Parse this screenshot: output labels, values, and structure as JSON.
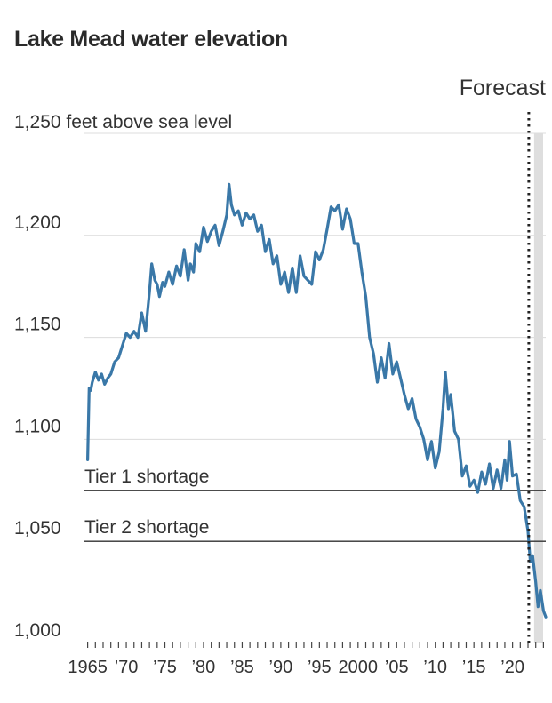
{
  "chart_data": {
    "type": "line",
    "title": "Lake Mead water elevation",
    "y_unit_label": "1,250 feet above sea level",
    "ylim": [
      1000,
      1250
    ],
    "y_ticks": [
      1000,
      1050,
      1100,
      1150,
      1200
    ],
    "y_tick_labels": [
      "1,000",
      "1,050",
      "1,100",
      "1,150",
      "1,200"
    ],
    "xlim": [
      1964.7,
      2024.3
    ],
    "x_ticks": [
      1965,
      1970,
      1975,
      1980,
      1985,
      1990,
      1995,
      2000,
      2005,
      2010,
      2015,
      2020
    ],
    "x_tick_labels": [
      "1965",
      "’70",
      "’75",
      "’80",
      "’85",
      "’90",
      "’95",
      "2000",
      "’05",
      "’10",
      "’15",
      "’20"
    ],
    "grid": true,
    "line_color": "#3a78a8",
    "thresholds": [
      {
        "label": "Tier 1 shortage",
        "value": 1075
      },
      {
        "label": "Tier 2 shortage",
        "value": 1050
      }
    ],
    "forecast": {
      "label": "Forecast",
      "start": 2022.1,
      "end": 2024.3,
      "shade_color": "#dedede"
    },
    "series": [
      {
        "x": [
          1965.0,
          1965.2,
          1965.4,
          1965.6,
          1966.0,
          1966.4,
          1966.8,
          1967.2,
          1967.6,
          1968.0,
          1968.5,
          1969.0,
          1969.5,
          1970.0,
          1970.5,
          1971.0,
          1971.5,
          1972.0,
          1972.5,
          1973.0,
          1973.3,
          1973.7,
          1974.0,
          1974.3,
          1974.7,
          1975.0,
          1975.5,
          1976.0,
          1976.5,
          1977.0,
          1977.5,
          1978.0,
          1978.3,
          1978.7,
          1979.0,
          1979.5,
          1980.0,
          1980.5,
          1981.0,
          1981.5,
          1982.0,
          1982.5,
          1983.0,
          1983.3,
          1983.6,
          1984.0,
          1984.5,
          1985.0,
          1985.5,
          1986.0,
          1986.5,
          1987.0,
          1987.5,
          1988.0,
          1988.5,
          1989.0,
          1989.5,
          1990.0,
          1990.5,
          1991.0,
          1991.5,
          1992.0,
          1992.5,
          1993.0,
          1993.5,
          1994.0,
          1994.5,
          1995.0,
          1995.5,
          1996.0,
          1996.5,
          1997.0,
          1997.5,
          1998.0,
          1998.5,
          1999.0,
          1999.5,
          2000.0,
          2000.5,
          2001.0,
          2001.5,
          2002.0,
          2002.5,
          2003.0,
          2003.5,
          2004.0,
          2004.5,
          2005.0,
          2005.5,
          2006.0,
          2006.5,
          2007.0,
          2007.5,
          2008.0,
          2008.5,
          2009.0,
          2009.5,
          2010.0,
          2010.5,
          2011.0,
          2011.3,
          2011.7,
          2012.0,
          2012.5,
          2013.0,
          2013.5,
          2014.0,
          2014.5,
          2015.0,
          2015.5,
          2016.0,
          2016.5,
          2017.0,
          2017.5,
          2018.0,
          2018.5,
          2019.0,
          2019.3,
          2019.6,
          2020.0,
          2020.5,
          2021.0,
          2021.5,
          2022.0,
          2022.3,
          2022.6,
          2023.0,
          2023.3,
          2023.6,
          2024.0,
          2024.3
        ],
        "values": [
          1090,
          1125,
          1124,
          1128,
          1133,
          1129,
          1132,
          1127,
          1130,
          1132,
          1138,
          1140,
          1146,
          1152,
          1150,
          1153,
          1150,
          1162,
          1153,
          1172,
          1186,
          1178,
          1176,
          1170,
          1177,
          1175,
          1182,
          1176,
          1185,
          1180,
          1193,
          1178,
          1186,
          1182,
          1196,
          1192,
          1204,
          1197,
          1202,
          1205,
          1195,
          1202,
          1210,
          1225,
          1215,
          1210,
          1212,
          1205,
          1211,
          1208,
          1210,
          1202,
          1205,
          1192,
          1198,
          1186,
          1190,
          1176,
          1182,
          1172,
          1184,
          1172,
          1190,
          1180,
          1178,
          1176,
          1192,
          1188,
          1193,
          1203,
          1214,
          1212,
          1215,
          1203,
          1213,
          1208,
          1196,
          1196,
          1182,
          1170,
          1150,
          1142,
          1128,
          1140,
          1130,
          1147,
          1132,
          1138,
          1130,
          1122,
          1115,
          1120,
          1110,
          1106,
          1100,
          1090,
          1099,
          1086,
          1094,
          1115,
          1133,
          1115,
          1122,
          1104,
          1100,
          1082,
          1087,
          1077,
          1080,
          1074,
          1084,
          1078,
          1088,
          1076,
          1085,
          1076,
          1090,
          1080,
          1099,
          1082,
          1083,
          1070,
          1067,
          1055,
          1040,
          1043,
          1030,
          1018,
          1026,
          1016,
          1013
        ]
      }
    ]
  }
}
